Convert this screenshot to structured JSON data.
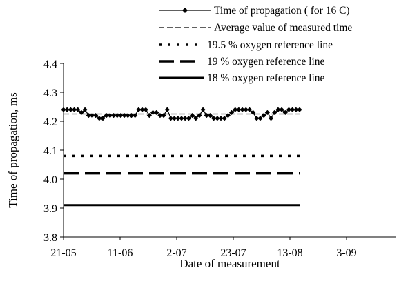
{
  "chart_data": {
    "type": "line",
    "xlabel": "Date of measurement",
    "ylabel": "Time of propagation, ms",
    "ylim": [
      3.8,
      4.4
    ],
    "yticks": [
      "3.8",
      "3.9",
      "4.0",
      "4.1",
      "4.2",
      "4.3",
      "4.4"
    ],
    "xticks": [
      "21-05",
      "11-06",
      "2-07",
      "23-07",
      "13-08",
      "3-09"
    ],
    "grid": false,
    "legend_position": "top-right",
    "series": [
      {
        "name": "Time of propagation ( for 16 C)",
        "style": "solid-diamond",
        "values": [
          4.24,
          4.24,
          4.24,
          4.24,
          4.24,
          4.23,
          4.24,
          4.22,
          4.22,
          4.22,
          4.21,
          4.21,
          4.22,
          4.22,
          4.22,
          4.22,
          4.22,
          4.22,
          4.22,
          4.22,
          4.22,
          4.24,
          4.24,
          4.24,
          4.22,
          4.23,
          4.23,
          4.22,
          4.22,
          4.24,
          4.21,
          4.21,
          4.21,
          4.21,
          4.21,
          4.21,
          4.22,
          4.21,
          4.22,
          4.24,
          4.22,
          4.22,
          4.21,
          4.21,
          4.21,
          4.21,
          4.22,
          4.23,
          4.24,
          4.24,
          4.24,
          4.24,
          4.24,
          4.23,
          4.21,
          4.21,
          4.22,
          4.23,
          4.21,
          4.23,
          4.24,
          4.24,
          4.23,
          4.24,
          4.24,
          4.24,
          4.24
        ]
      },
      {
        "name": "Average value of measured time",
        "style": "thin-dash",
        "values": [
          4.225
        ]
      },
      {
        "name": "19.5 % oxygen reference line",
        "style": "dotted-thick",
        "values": [
          4.08
        ]
      },
      {
        "name": "19 % oxygen reference line",
        "style": "long-dash-thick",
        "values": [
          4.02
        ]
      },
      {
        "name": "18 % oxygen reference line",
        "style": "solid-thick",
        "values": [
          3.91
        ]
      }
    ]
  },
  "colors": {
    "ink": "#000000",
    "background": "#ffffff"
  }
}
